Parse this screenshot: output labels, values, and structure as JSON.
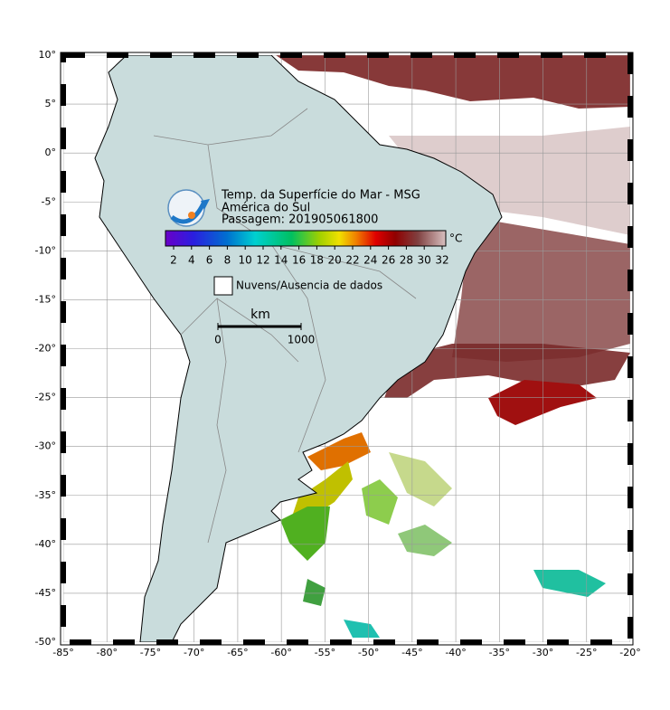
{
  "header": {
    "title": "Temp. da Superfície do Mar - MSG",
    "region": "América do Sul",
    "pass": "Passagem: 201905061800"
  },
  "colorbar": {
    "unit": "°C",
    "ticks": [
      2,
      4,
      6,
      8,
      10,
      12,
      14,
      16,
      18,
      20,
      22,
      24,
      26,
      28,
      30,
      32
    ]
  },
  "legend": {
    "no_data": "Nuvens/Ausencia de dados"
  },
  "scale_bar": {
    "unit": "km",
    "ticks": [
      0,
      1000
    ]
  },
  "axes": {
    "lon_ticks": [
      {
        "value": -85,
        "label": "-85°"
      },
      {
        "value": -80,
        "label": "-80°"
      },
      {
        "value": -75,
        "label": "-75°"
      },
      {
        "value": -70,
        "label": "-70°"
      },
      {
        "value": -65,
        "label": "-65°"
      },
      {
        "value": -60,
        "label": "-60°"
      },
      {
        "value": -55,
        "label": "-55°"
      },
      {
        "value": -50,
        "label": "-50°"
      },
      {
        "value": -45,
        "label": "-45°"
      },
      {
        "value": -40,
        "label": "-40°"
      },
      {
        "value": -35,
        "label": "-35°"
      },
      {
        "value": -30,
        "label": "-30°"
      },
      {
        "value": -25,
        "label": "-25°"
      },
      {
        "value": -20,
        "label": "-20°"
      }
    ],
    "lat_ticks": [
      {
        "value": 10,
        "label": "10°"
      },
      {
        "value": 5,
        "label": "5°"
      },
      {
        "value": 0,
        "label": "0°"
      },
      {
        "value": -5,
        "label": "-5°"
      },
      {
        "value": -10,
        "label": "-10°"
      },
      {
        "value": -15,
        "label": "-15°"
      },
      {
        "value": -20,
        "label": "-20°"
      },
      {
        "value": -25,
        "label": "-25°"
      },
      {
        "value": -30,
        "label": "-30°"
      },
      {
        "value": -35,
        "label": "-35°"
      },
      {
        "value": -40,
        "label": "-40°"
      },
      {
        "value": -45,
        "label": "-45°"
      },
      {
        "value": -50,
        "label": "-50°"
      }
    ]
  }
}
